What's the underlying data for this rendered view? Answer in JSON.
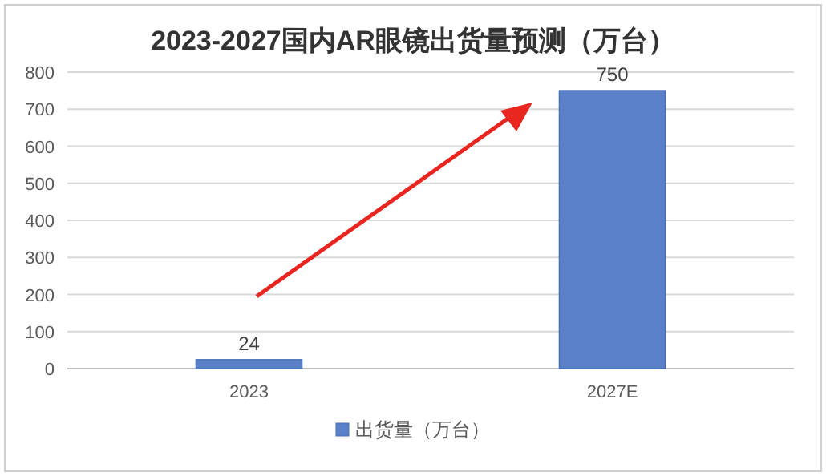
{
  "chart_data": {
    "type": "bar",
    "title": "2023-2027国内AR眼镜出货量预测（万台）",
    "categories": [
      "2023",
      "2027E"
    ],
    "series": [
      {
        "name": "出货量（万台）",
        "color": "#5a80c8",
        "values": [
          24,
          750
        ]
      }
    ],
    "ylim": [
      0,
      800
    ],
    "yticks": [
      0,
      100,
      200,
      300,
      400,
      500,
      600,
      700,
      800
    ],
    "grid": "y",
    "legend": "bottom",
    "data_labels": true
  }
}
